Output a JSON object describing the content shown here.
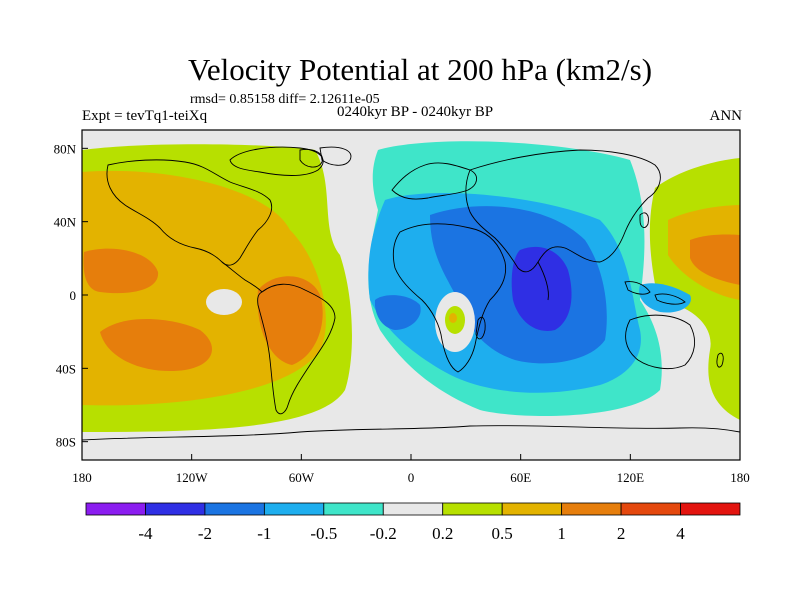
{
  "header": {
    "title": "Velocity Potential at 200 hPa (km2/s)",
    "stats": "rmsd= 0.85158 diff= 2.12611e-05",
    "experiment": "Expt = tevTq1-teiXq",
    "period": "0240kyr BP - 0240kyr BP",
    "season": "ANN"
  },
  "axes": {
    "x_ticks": [
      {
        "lon": -180,
        "label": "180"
      },
      {
        "lon": -120,
        "label": "120W"
      },
      {
        "lon": -60,
        "label": "60W"
      },
      {
        "lon": 0,
        "label": "0"
      },
      {
        "lon": 60,
        "label": "60E"
      },
      {
        "lon": 120,
        "label": "120E"
      },
      {
        "lon": 180,
        "label": "180"
      }
    ],
    "y_ticks": [
      {
        "lat": 80,
        "label": "80N"
      },
      {
        "lat": 40,
        "label": "40N"
      },
      {
        "lat": 0,
        "label": "0"
      },
      {
        "lat": -40,
        "label": "40S"
      },
      {
        "lat": -80,
        "label": "80S"
      }
    ]
  },
  "colorbar": {
    "colors": [
      "#8b1df0",
      "#2f2fe4",
      "#1b74e2",
      "#1eaeee",
      "#3fe5c9",
      "#e8e8e8",
      "#b7e000",
      "#e3b300",
      "#e67e0c",
      "#e4480e",
      "#e3140f"
    ],
    "labels": [
      "-4",
      "-2",
      "-1",
      "-0.5",
      "-0.2",
      "0.2",
      "0.5",
      "1",
      "2",
      "4"
    ]
  },
  "legend_colors": {
    "neutral": "#e8e8e8",
    "pos_low": "#b7e000",
    "pos_mid": "#e3b300",
    "pos_high": "#e67e0c",
    "neg_low": "#3fe5c9",
    "neg_mid": "#1eaeee",
    "neg_high": "#1b74e2",
    "neg_max": "#2f2fe4"
  }
}
